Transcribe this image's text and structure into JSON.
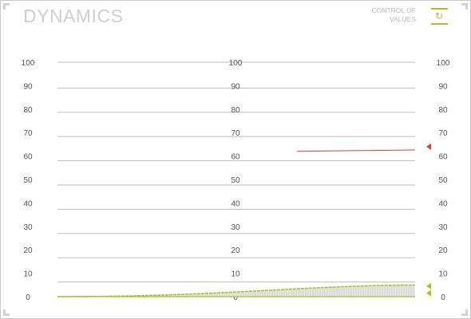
{
  "header": {
    "title": "DYNAMICS",
    "control_label": "CONTROL OF\nVALUES",
    "control_icon": "refresh-icon"
  },
  "colors": {
    "accent": "#a6c41f",
    "marker_red": "#e53935",
    "grid": "#bdbdbd",
    "tick_text": "#555555",
    "title": "#cfcfcf"
  },
  "chart_data": {
    "type": "area",
    "ylim": [
      0,
      100
    ],
    "grid": true,
    "ticks": [
      "0",
      "10",
      "20",
      "30",
      "40",
      "50",
      "60",
      "70",
      "80",
      "90",
      "100"
    ],
    "series": [
      {
        "color": "#e53935",
        "x": [
          0.67,
          1.0
        ],
        "values": [
          62,
          62.6
        ]
      },
      {
        "color": "#a6c41f",
        "x": [
          0.0,
          0.1,
          0.2,
          0.3,
          0.4,
          0.5,
          0.6,
          0.7,
          0.8,
          0.9,
          1.0
        ],
        "values": [
          0,
          0.1,
          0.3,
          0.7,
          1.3,
          2.0,
          2.8,
          3.6,
          4.3,
          4.8,
          5.0
        ]
      }
    ],
    "markers": [
      {
        "side": "right",
        "color": "#e53935",
        "value": 64
      },
      {
        "side": "right",
        "color": "#a6c41f",
        "value": 4.5
      },
      {
        "side": "right",
        "color": "#a6c41f",
        "value": 1.5
      }
    ]
  }
}
